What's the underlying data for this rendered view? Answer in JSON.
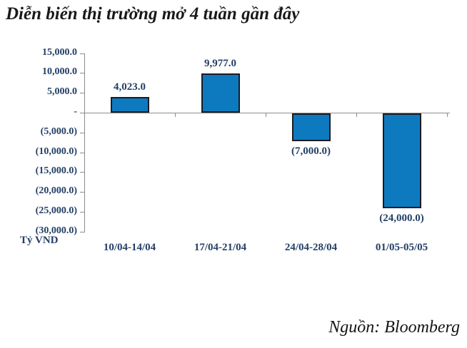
{
  "title": "Diễn biến thị trường mở 4 tuần gần đây",
  "source": "Nguồn: Bloomberg",
  "chart_data": {
    "type": "bar",
    "title": "Diễn biến thị trường mở 4 tuần gần đây",
    "unit_label": "Tỷ VND",
    "categories": [
      "10/04-14/04",
      "17/04-21/04",
      "24/04-28/04",
      "01/05-05/05"
    ],
    "values": [
      4023,
      9977,
      -7000,
      -24000
    ],
    "value_labels": [
      "4,023.0",
      "9,977.0",
      "(7,000.0)",
      "(24,000.0)"
    ],
    "y_ticks": [
      {
        "value": 15000,
        "label": "15,000.0"
      },
      {
        "value": 10000,
        "label": "10,000.0"
      },
      {
        "value": 5000,
        "label": "5,000.0"
      },
      {
        "value": 0,
        "label": "-"
      },
      {
        "value": -5000,
        "label": "(5,000.0)"
      },
      {
        "value": -10000,
        "label": "(10,000.0)"
      },
      {
        "value": -15000,
        "label": "(15,000.0)"
      },
      {
        "value": -20000,
        "label": "(20,000.0)"
      },
      {
        "value": -25000,
        "label": "(25,000.0)"
      },
      {
        "value": -30000,
        "label": "(30,000.0)"
      }
    ],
    "ylim": [
      -30000,
      15000
    ],
    "grid": false,
    "legend": null,
    "colors": {
      "bar_fill": "#0d7abf",
      "bar_border": "#1b1b24",
      "axis": "#8c8c8c",
      "label_text": "#243f66",
      "title_text": "#191919"
    }
  }
}
